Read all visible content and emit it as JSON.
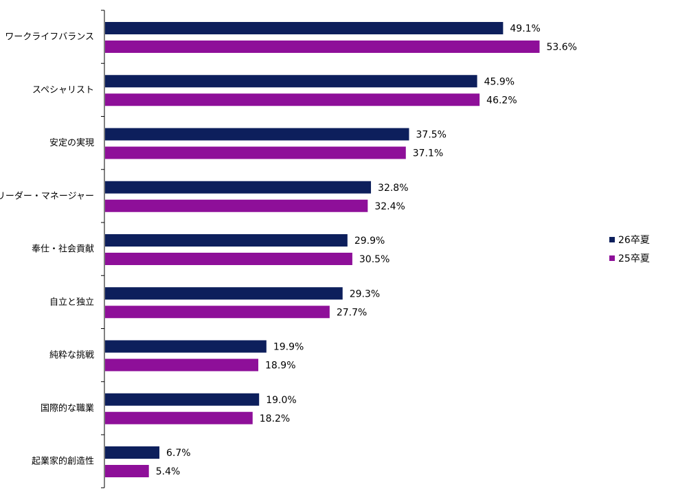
{
  "chart_data": {
    "type": "bar",
    "orientation": "horizontal",
    "categories": [
      "ワークライフバランス",
      "スペシャリスト",
      "安定の実現",
      "リーダー・マネージャー",
      "奉仕・社会貢献",
      "自立と独立",
      "純粋な挑戦",
      "国際的な職業",
      "起業家的創造性"
    ],
    "series": [
      {
        "name": "26卒夏",
        "color": "#0d1f5c",
        "values": [
          49.1,
          45.9,
          37.5,
          32.8,
          29.9,
          29.3,
          19.9,
          19.0,
          6.7
        ],
        "labels": [
          "49.1%",
          "45.9%",
          "37.5%",
          "32.8%",
          "29.9%",
          "29.3%",
          "19.9%",
          "19.0%",
          "6.7%"
        ]
      },
      {
        "name": "25卒夏",
        "color": "#8e0f99",
        "values": [
          53.6,
          46.2,
          37.1,
          32.4,
          30.5,
          27.7,
          18.9,
          18.2,
          5.4
        ],
        "labels": [
          "53.6%",
          "46.2%",
          "37.1%",
          "32.4%",
          "30.5%",
          "27.7%",
          "18.9%",
          "18.2%",
          "5.4%"
        ]
      }
    ],
    "xlim": [
      0,
      54
    ],
    "grid": false,
    "legend_position": "right"
  }
}
